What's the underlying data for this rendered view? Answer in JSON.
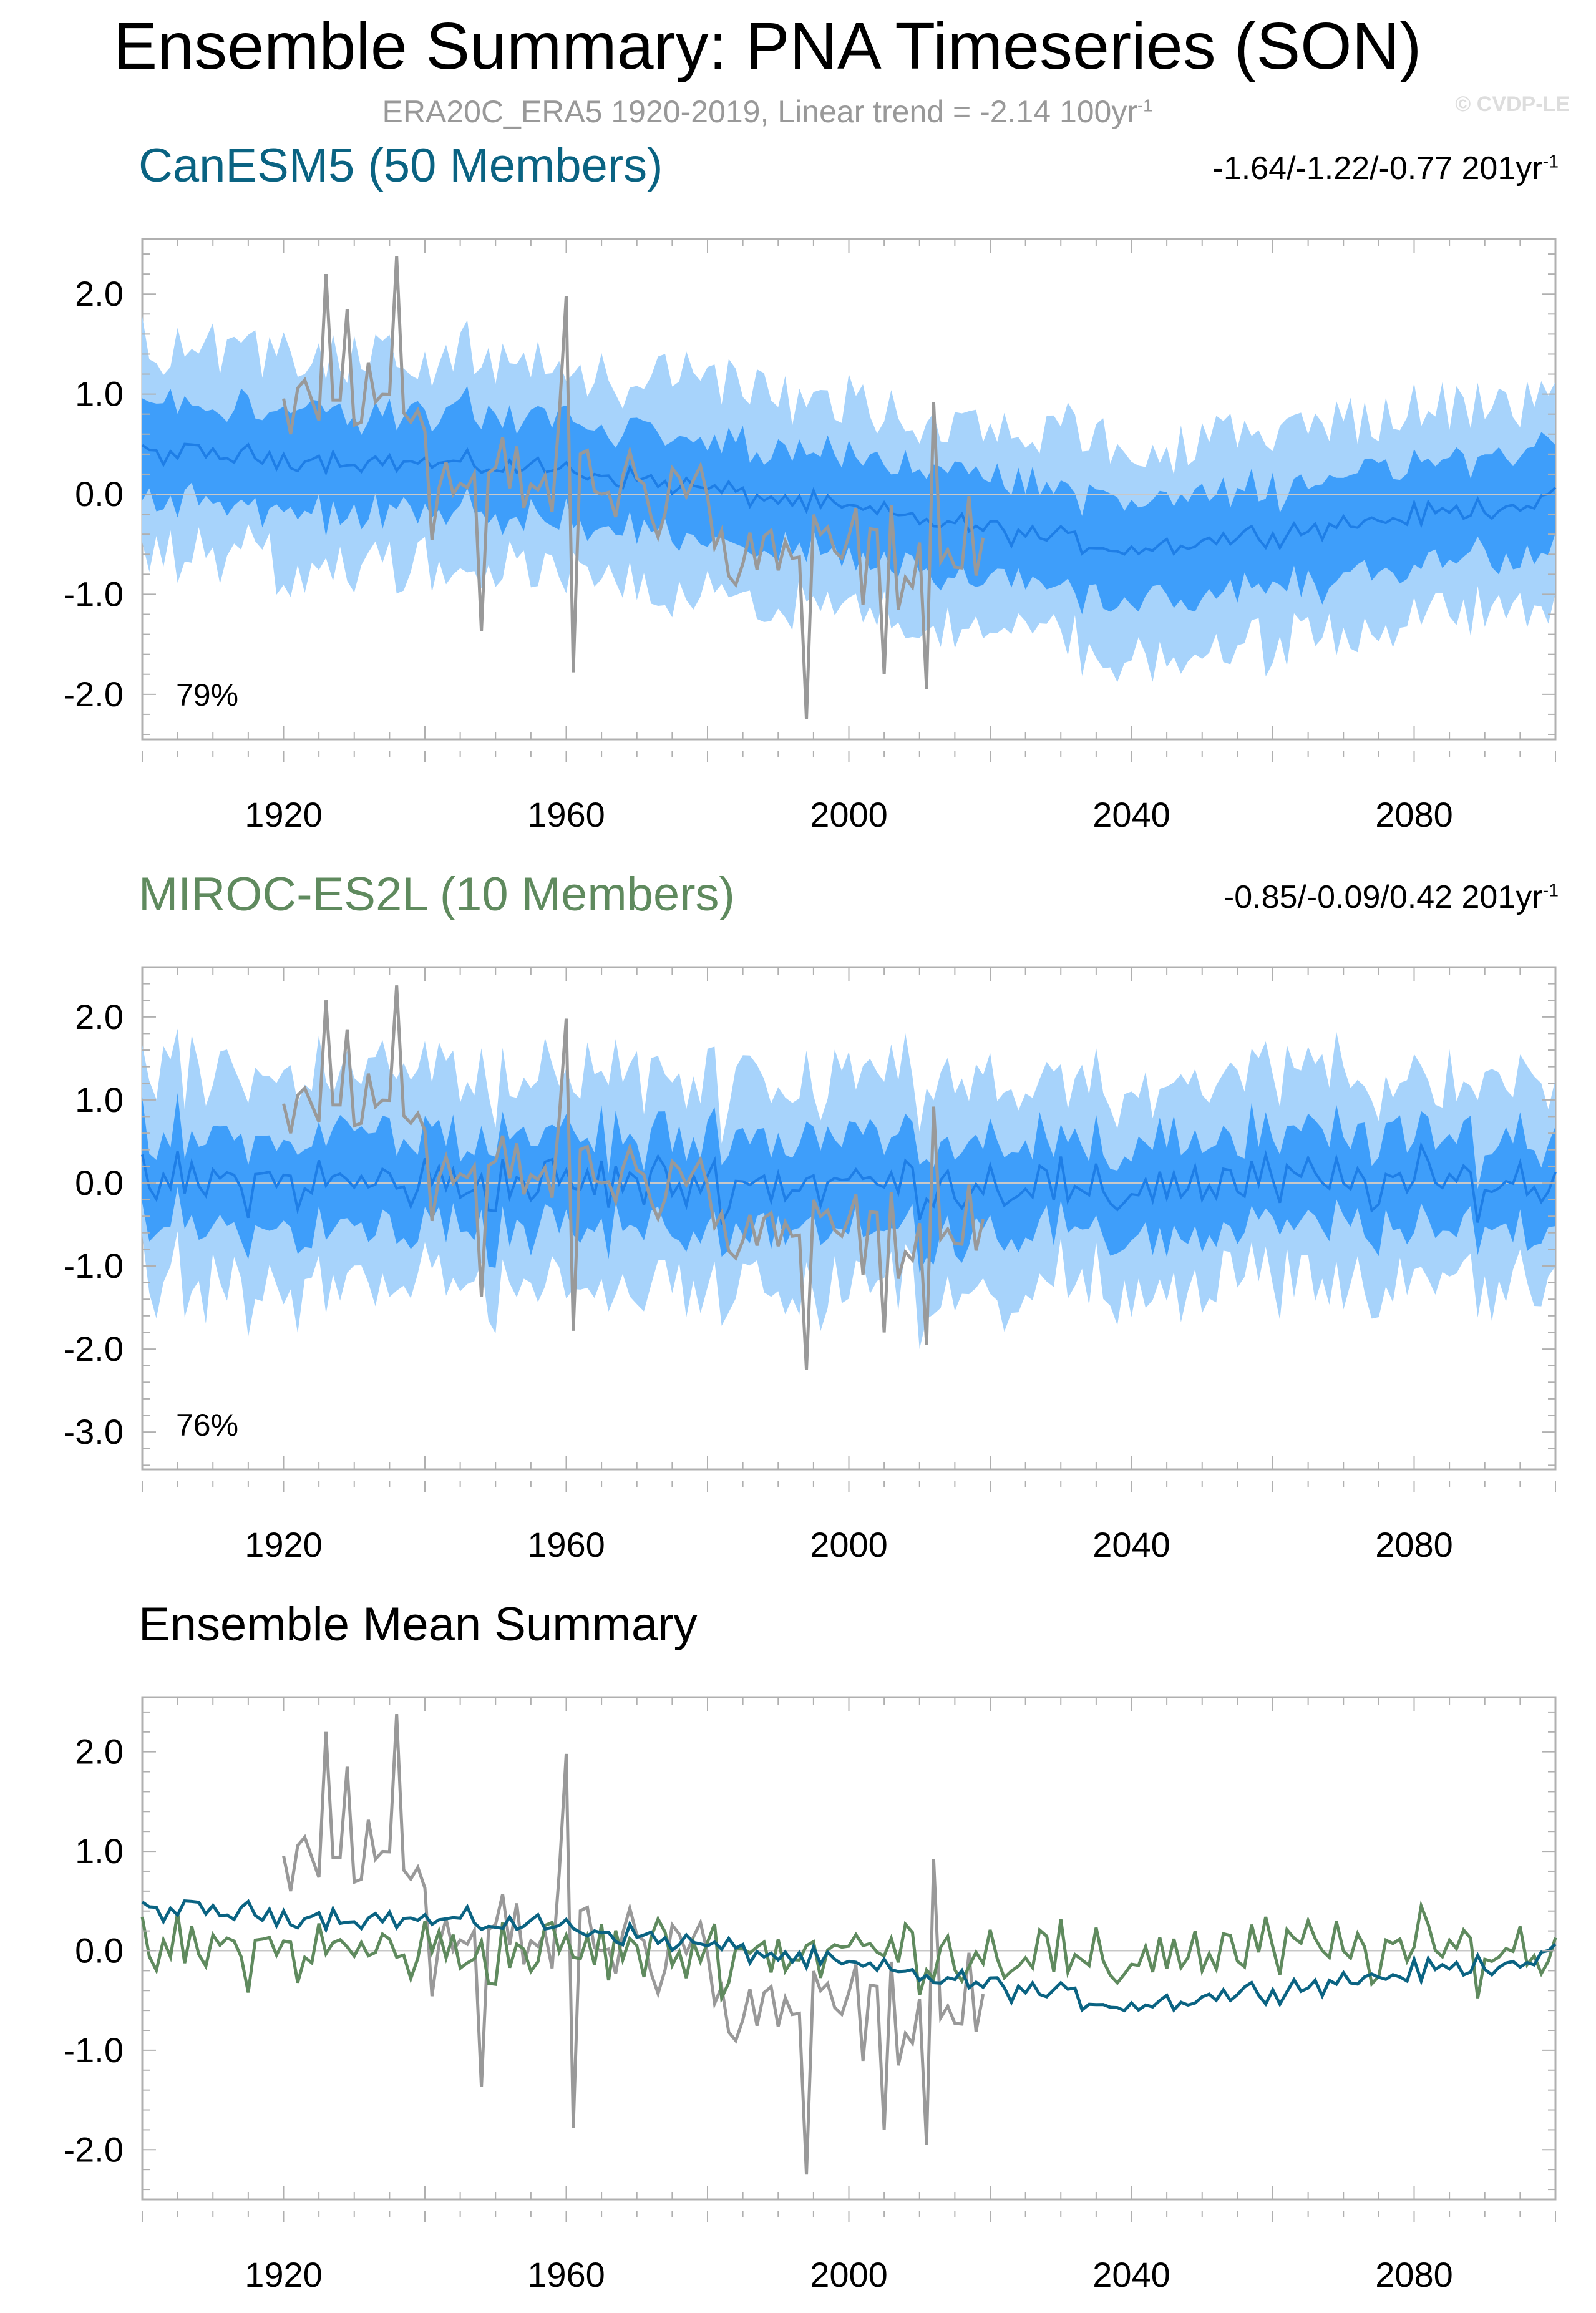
{
  "title": "Ensemble Summary: PNA Timeseries (SON)",
  "subtitle": {
    "text": "ERA20C_ERA5 1920-2019, Linear trend = -2.14 100yr",
    "sup": "-1"
  },
  "copyright": "© CVDP-LE",
  "colors": {
    "canesm": "#0a6382",
    "miroc": "#5f8a5e",
    "obs": "#999999",
    "band_outer": "#a7d3fb",
    "band_inner": "#3e9efa",
    "mean_line": "#1e7ee6",
    "zero_line": "#c8c8c8",
    "frame": "#b0b0b0"
  },
  "panels": [
    {
      "id": "canesm5",
      "title": "CanESM5 (50 Members)",
      "trend": "-1.64/-1.22/-0.77 201yr",
      "trend_sup": "-1",
      "pct": "79%",
      "color": "canesm"
    },
    {
      "id": "miroc",
      "title": "MIROC-ES2L (10 Members)",
      "trend": "-0.85/-0.09/0.42 201yr",
      "trend_sup": "-1",
      "pct": "76%",
      "color": "miroc"
    },
    {
      "id": "mean",
      "title": "Ensemble Mean Summary",
      "trend": "",
      "trend_sup": "",
      "pct": "",
      "color": "black"
    }
  ],
  "chart_data": [
    {
      "type": "area",
      "panel": "canesm5",
      "x_range": [
        1900,
        2100
      ],
      "ylim": [
        -2.45,
        2.55
      ],
      "xticks": [
        "1920",
        "1960",
        "2000",
        "2040",
        "2080"
      ],
      "yticks": [
        "2.0",
        "1.0",
        "0.0",
        "-1.0",
        "-2.0"
      ],
      "series": [
        {
          "name": "CanESM5 ensemble mean",
          "mean_1900": 0.42,
          "mean_1960": 0.25,
          "mean_2000": -0.1,
          "mean_2040": -0.55,
          "mean_2100": -0.05
        },
        {
          "name": "inner spread (25-75%)",
          "halfwidth": 0.5
        },
        {
          "name": "outer spread (10-90%)",
          "halfwidth": 1.05
        },
        {
          "name": "ERA20C_ERA5",
          "years": [
            1920,
            2019
          ],
          "max": 2.38,
          "min": -2.25
        }
      ]
    },
    {
      "type": "area",
      "panel": "miroc",
      "x_range": [
        1900,
        2100
      ],
      "ylim": [
        -3.45,
        2.6
      ],
      "xticks": [
        "1920",
        "1960",
        "2000",
        "2040",
        "2080"
      ],
      "yticks": [
        "2.0",
        "1.0",
        "0.0",
        "-1.0",
        "-2.0",
        "-3.0"
      ],
      "series": [
        {
          "name": "MIROC-ES2L ensemble mean",
          "mean": 0.0,
          "amplitude": 0.6
        },
        {
          "name": "inner spread",
          "halfwidth": 0.55
        },
        {
          "name": "outer spread",
          "halfwidth": 1.25
        },
        {
          "name": "ERA20C_ERA5",
          "years": [
            1920,
            2019
          ]
        }
      ]
    },
    {
      "type": "line",
      "panel": "mean",
      "x_range": [
        1900,
        2100
      ],
      "ylim": [
        -2.5,
        2.55
      ],
      "xticks": [
        "1920",
        "1960",
        "2000",
        "2040",
        "2080"
      ],
      "yticks": [
        "2.0",
        "1.0",
        "0.0",
        "-1.0",
        "-2.0"
      ],
      "series": [
        {
          "name": "CanESM5",
          "color": "canesm"
        },
        {
          "name": "MIROC-ES2L",
          "color": "miroc"
        },
        {
          "name": "ERA20C_ERA5",
          "color": "obs"
        }
      ]
    }
  ]
}
